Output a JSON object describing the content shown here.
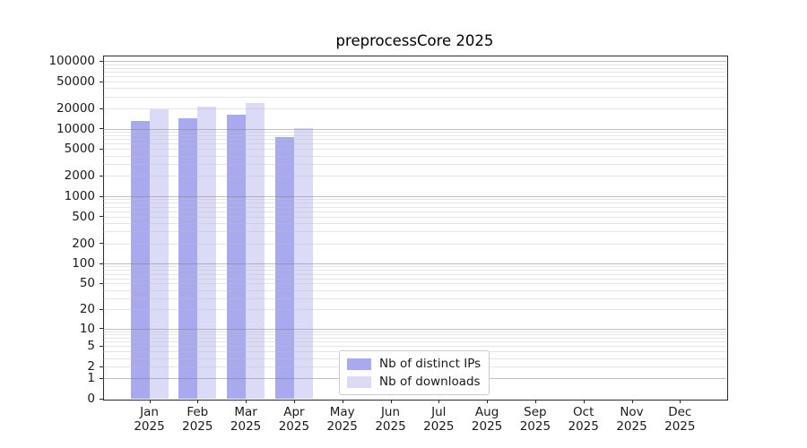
{
  "title": "preprocessCore 2025",
  "chart_data": {
    "type": "bar",
    "title": "preprocessCore 2025",
    "y_scale": "log10(1+value)",
    "ylim": [
      0,
      121000
    ],
    "grid": "horizontal, minor and major log gridlines drawn over bars",
    "legend_position": "bottom center inside plot",
    "y_ticks": [
      0,
      1,
      2,
      5,
      10,
      20,
      50,
      100,
      200,
      500,
      1000,
      2000,
      5000,
      10000,
      20000,
      50000,
      100000
    ],
    "categories": [
      {
        "month": "Jan",
        "year": "2025"
      },
      {
        "month": "Feb",
        "year": "2025"
      },
      {
        "month": "Mar",
        "year": "2025"
      },
      {
        "month": "Apr",
        "year": "2025"
      },
      {
        "month": "May",
        "year": "2025"
      },
      {
        "month": "Jun",
        "year": "2025"
      },
      {
        "month": "Jul",
        "year": "2025"
      },
      {
        "month": "Aug",
        "year": "2025"
      },
      {
        "month": "Sep",
        "year": "2025"
      },
      {
        "month": "Oct",
        "year": "2025"
      },
      {
        "month": "Nov",
        "year": "2025"
      },
      {
        "month": "Dec",
        "year": "2025"
      }
    ],
    "series": [
      {
        "name": "Nb of distinct IPs",
        "color": "#a9a9ef",
        "values": [
          13100,
          14500,
          16400,
          7450,
          null,
          null,
          null,
          null,
          null,
          null,
          null,
          null
        ]
      },
      {
        "name": "Nb of downloads",
        "color": "#dbdbf8",
        "values": [
          19700,
          21100,
          24100,
          10150,
          null,
          null,
          null,
          null,
          null,
          null,
          null,
          null
        ]
      }
    ]
  },
  "colors": {
    "background": "#ffffff",
    "text": "#1a1a1a",
    "axis_frame": "#2b2b2b",
    "gridline_major": "#bdbdbd",
    "gridline_minor": "#e6e6e6",
    "legend_border": "#cccccc",
    "series_ips": "#a9a9ef",
    "series_downloads": "#dbdbf8"
  }
}
